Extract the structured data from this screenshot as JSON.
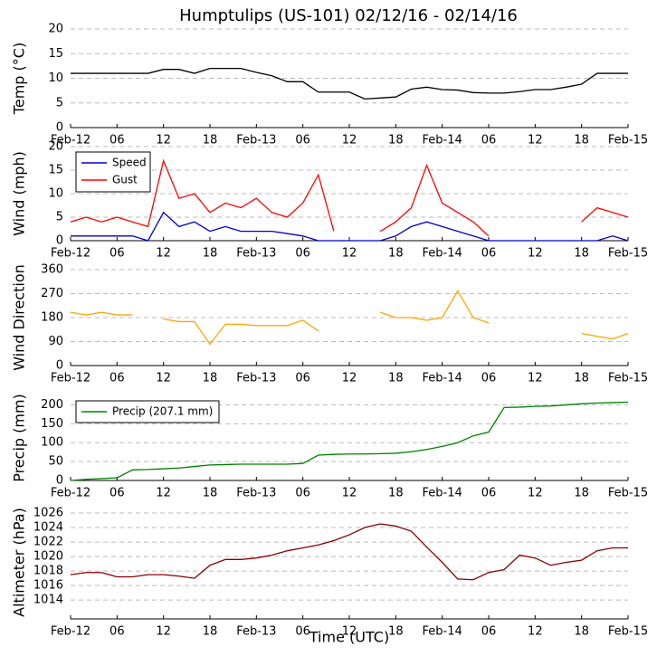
{
  "chart_data": [
    {
      "type": "line",
      "title": "Humptulips (US-101) 02/12/16 - 02/14/16",
      "ylabel": "Temp (°C)",
      "x": [
        0,
        2,
        4,
        6,
        8,
        10,
        12,
        14,
        16,
        18,
        20,
        22,
        24,
        26,
        28,
        30,
        32,
        34,
        36,
        38,
        40,
        42,
        44,
        46,
        48,
        50,
        52,
        54,
        56,
        58,
        60,
        62,
        64,
        66,
        68,
        70,
        72
      ],
      "series": [
        {
          "name": "Temp",
          "color": "#000000",
          "values": [
            11,
            11,
            11,
            11,
            11,
            11,
            11.8,
            11.8,
            11,
            12,
            12,
            12,
            11.2,
            10.5,
            9.3,
            9.3,
            7.2,
            7.2,
            7.2,
            5.8,
            6,
            6.2,
            7.8,
            8.2,
            7.7,
            7.6,
            7.1,
            7,
            7,
            7.3,
            7.7,
            7.7,
            8.2,
            8.8,
            11,
            11,
            11
          ]
        }
      ],
      "xlim": [
        0,
        72
      ],
      "xticks": [
        {
          "value": 0,
          "label": "Feb-12"
        },
        {
          "value": 6,
          "label": "06"
        },
        12,
        18,
        {
          "value": 24,
          "label": "Feb-13"
        },
        {
          "value": 30,
          "label": "06"
        },
        {
          "value": 36,
          "label": "12"
        },
        {
          "value": 42,
          "label": "18"
        },
        {
          "value": 48,
          "label": "Feb-14"
        },
        {
          "value": 54,
          "label": "06"
        },
        {
          "value": 60,
          "label": "12"
        },
        {
          "value": 66,
          "label": "18"
        },
        {
          "value": 72,
          "label": "Feb-15"
        }
      ],
      "ylim": [
        0,
        20
      ],
      "yticks": [
        0,
        5,
        10,
        15,
        20
      ],
      "grid": true
    },
    {
      "type": "line",
      "ylabel": "Wind (mph)",
      "legend": "upper left",
      "x": [
        0,
        2,
        4,
        6,
        8,
        10,
        12,
        14,
        16,
        18,
        20,
        22,
        24,
        26,
        28,
        30,
        32,
        34,
        36,
        38,
        40,
        42,
        44,
        46,
        48,
        50,
        52,
        54,
        56,
        58,
        60,
        62,
        64,
        66,
        68,
        70,
        72
      ],
      "series": [
        {
          "name": "Speed",
          "color": "#0000cc",
          "values": [
            1,
            1,
            1,
            1,
            1,
            0,
            6,
            3,
            4,
            2,
            3,
            2,
            2,
            2,
            1.5,
            1,
            0,
            0,
            0,
            0,
            0,
            1,
            3,
            4,
            3,
            2,
            1,
            0,
            0,
            0,
            0,
            0,
            0,
            0,
            0,
            1,
            0
          ]
        },
        {
          "name": "Gust",
          "color": "#ff0000",
          "values": [
            4,
            5,
            4,
            5,
            4,
            3,
            17,
            9,
            10,
            6,
            8,
            7,
            9,
            6,
            5,
            8,
            14,
            2,
            null,
            null,
            2,
            4,
            7,
            16,
            8,
            6,
            4,
            1,
            null,
            null,
            null,
            null,
            null,
            4,
            7,
            6,
            5
          ]
        }
      ],
      "xlim": [
        0,
        72
      ],
      "xticks": [
        {
          "value": 0,
          "label": "Feb-12"
        },
        {
          "value": 6,
          "label": "06"
        },
        12,
        18,
        {
          "value": 24,
          "label": "Feb-13"
        },
        {
          "value": 30,
          "label": "06"
        },
        {
          "value": 36,
          "label": "12"
        },
        {
          "value": 42,
          "label": "18"
        },
        {
          "value": 48,
          "label": "Feb-14"
        },
        {
          "value": 54,
          "label": "06"
        },
        {
          "value": 60,
          "label": "12"
        },
        {
          "value": 66,
          "label": "18"
        },
        {
          "value": 72,
          "label": "Feb-15"
        }
      ],
      "ylim": [
        0,
        20
      ],
      "yticks": [
        0,
        5,
        10,
        15,
        20
      ],
      "grid": true
    },
    {
      "type": "line",
      "ylabel": "Wind Direction",
      "x": [
        0,
        2,
        4,
        6,
        8,
        10,
        12,
        14,
        16,
        18,
        20,
        22,
        24,
        26,
        28,
        30,
        32,
        34,
        36,
        38,
        40,
        42,
        44,
        46,
        48,
        50,
        52,
        54,
        56,
        58,
        60,
        62,
        64,
        66,
        68,
        70,
        72
      ],
      "series": [
        {
          "name": "Direction",
          "color": "#ffa500",
          "values": [
            200,
            190,
            200,
            190,
            190,
            null,
            175,
            165,
            165,
            80,
            155,
            155,
            150,
            150,
            150,
            170,
            130,
            null,
            null,
            null,
            200,
            180,
            180,
            170,
            180,
            280,
            180,
            160,
            null,
            null,
            null,
            null,
            null,
            120,
            110,
            100,
            120
          ]
        }
      ],
      "xlim": [
        0,
        72
      ],
      "xticks": [
        {
          "value": 0,
          "label": "Feb-12"
        },
        {
          "value": 6,
          "label": "06"
        },
        12,
        18,
        {
          "value": 24,
          "label": "Feb-13"
        },
        {
          "value": 30,
          "label": "06"
        },
        {
          "value": 36,
          "label": "12"
        },
        {
          "value": 42,
          "label": "18"
        },
        {
          "value": 48,
          "label": "Feb-14"
        },
        {
          "value": 54,
          "label": "06"
        },
        {
          "value": 60,
          "label": "12"
        },
        {
          "value": 66,
          "label": "18"
        },
        {
          "value": 72,
          "label": "Feb-15"
        }
      ],
      "ylim": [
        0,
        360
      ],
      "yticks": [
        0,
        90,
        180,
        270,
        360
      ],
      "grid": true
    },
    {
      "type": "line",
      "ylabel": "Precip (mm)",
      "legend": "upper left",
      "x": [
        0,
        2,
        4,
        6,
        8,
        10,
        12,
        14,
        16,
        18,
        20,
        22,
        24,
        26,
        28,
        30,
        32,
        34,
        36,
        38,
        40,
        42,
        44,
        46,
        48,
        50,
        52,
        54,
        56,
        58,
        60,
        62,
        64,
        66,
        68,
        70,
        72
      ],
      "series": [
        {
          "name": "Precip (207.1 mm)",
          "color": "#008000",
          "values": [
            0,
            3,
            5,
            7,
            28,
            29,
            31,
            33,
            37,
            41,
            42,
            43,
            43,
            43,
            43,
            45,
            67,
            69,
            70,
            70,
            71,
            72,
            76,
            82,
            90,
            100,
            118,
            128,
            193,
            194,
            196,
            197,
            200,
            203,
            205,
            206,
            207
          ]
        }
      ],
      "xlim": [
        0,
        72
      ],
      "xticks": [
        {
          "value": 0,
          "label": "Feb-12"
        },
        {
          "value": 6,
          "label": "06"
        },
        12,
        18,
        {
          "value": 24,
          "label": "Feb-13"
        },
        {
          "value": 30,
          "label": "06"
        },
        {
          "value": 36,
          "label": "12"
        },
        {
          "value": 42,
          "label": "18"
        },
        {
          "value": 48,
          "label": "Feb-14"
        },
        {
          "value": 54,
          "label": "06"
        },
        {
          "value": 60,
          "label": "12"
        },
        {
          "value": 66,
          "label": "18"
        },
        {
          "value": 72,
          "label": "Feb-15"
        }
      ],
      "ylim": [
        0,
        225
      ],
      "yticks": [
        0,
        50,
        100,
        150,
        200
      ],
      "grid": true
    },
    {
      "type": "line",
      "ylabel": "Altimeter (hPa)",
      "xlabel": "Time (UTC)",
      "x": [
        0,
        2,
        4,
        6,
        8,
        10,
        12,
        14,
        16,
        18,
        20,
        22,
        24,
        26,
        28,
        30,
        32,
        34,
        36,
        38,
        40,
        42,
        44,
        46,
        48,
        50,
        52,
        54,
        56,
        58,
        60,
        62,
        64,
        66,
        68,
        70,
        72
      ],
      "series": [
        {
          "name": "Altimeter",
          "color": "#8b0000",
          "values": [
            1017.5,
            1017.8,
            1017.8,
            1017.2,
            1017.2,
            1017.5,
            1017.5,
            1017.3,
            1017,
            1018.8,
            1019.6,
            1019.6,
            1019.8,
            1020.2,
            1020.8,
            1021.2,
            1021.6,
            1022.2,
            1023,
            1024,
            1024.5,
            1024.2,
            1023.5,
            1021.3,
            1019.2,
            1016.9,
            1016.8,
            1017.8,
            1018.2,
            1020.2,
            1019.8,
            1018.8,
            1019.2,
            1019.5,
            1020.8,
            1021.2,
            1021.2
          ]
        }
      ],
      "xlim": [
        0,
        72
      ],
      "xticks": [
        {
          "value": 0,
          "label": "Feb-12"
        },
        {
          "value": 6,
          "label": "06"
        },
        12,
        18,
        {
          "value": 24,
          "label": "Feb-13"
        },
        {
          "value": 30,
          "label": "06"
        },
        {
          "value": 36,
          "label": "12"
        },
        {
          "value": 42,
          "label": "18"
        },
        {
          "value": 48,
          "label": "Feb-14"
        },
        {
          "value": 54,
          "label": "06"
        },
        {
          "value": 60,
          "label": "12"
        },
        {
          "value": 66,
          "label": "18"
        },
        {
          "value": 72,
          "label": "Feb-15"
        }
      ],
      "ylim": [
        1011.4,
        1027
      ],
      "yticks": [
        1014,
        1016,
        1018,
        1020,
        1022,
        1024,
        1026
      ],
      "grid": true
    }
  ]
}
